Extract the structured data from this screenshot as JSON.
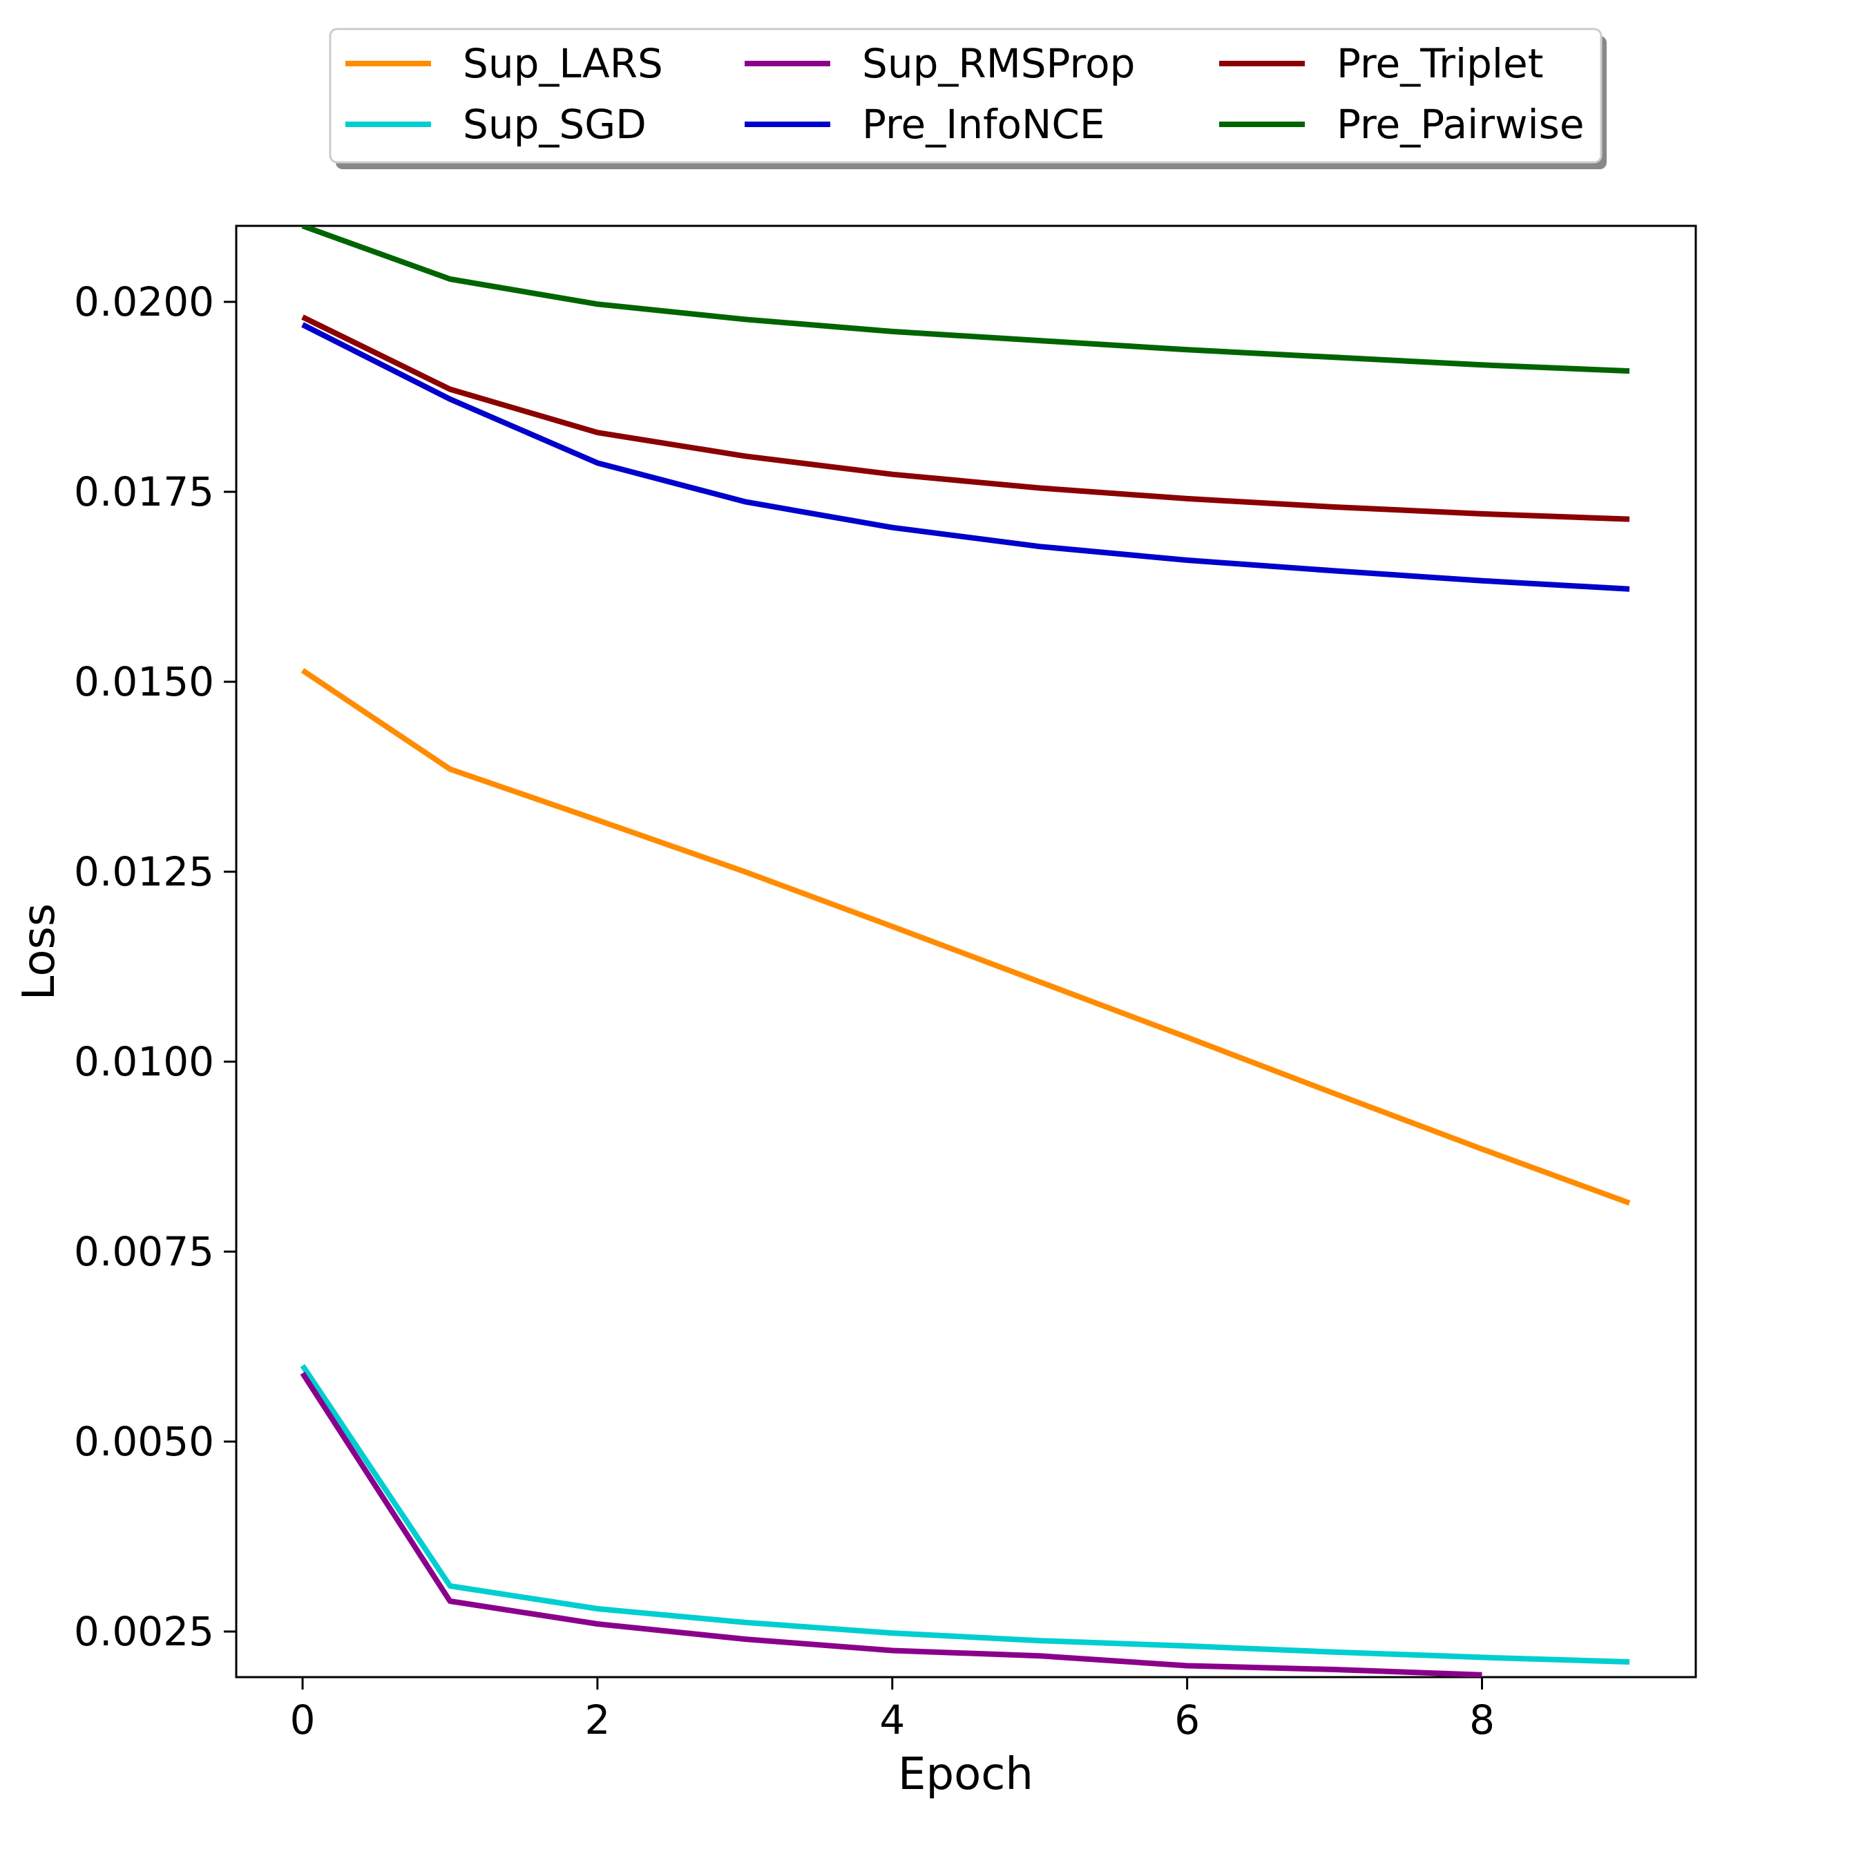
{
  "chart_data": {
    "type": "line",
    "title": "",
    "xlabel": "Epoch",
    "ylabel": "Loss",
    "xlim": [
      -0.45,
      9.45
    ],
    "ylim": [
      0.0019,
      0.021
    ],
    "x_ticks": [
      0,
      2,
      4,
      6,
      8
    ],
    "x_tick_labels": [
      "0",
      "2",
      "4",
      "6",
      "8"
    ],
    "y_ticks": [
      0.0025,
      0.005,
      0.0075,
      0.01,
      0.0125,
      0.015,
      0.0175,
      0.02
    ],
    "y_tick_labels": [
      "0.0025",
      "0.0050",
      "0.0075",
      "0.0100",
      "0.0125",
      "0.0150",
      "0.0175",
      "0.0200"
    ],
    "grid": false,
    "legend_position": "top-center, outside plot, 3 columns",
    "series": [
      {
        "name": "Sup_LARS",
        "color": "#ff8c00",
        "x": [
          0,
          1,
          2,
          3,
          4,
          5,
          6,
          7,
          8,
          9
        ],
        "values": [
          0.01515,
          0.01385,
          0.01318,
          0.0125,
          0.01178,
          0.01105,
          0.01032,
          0.00958,
          0.00885,
          0.00814
        ]
      },
      {
        "name": "Sup_SGD",
        "color": "#00ced1",
        "x": [
          0,
          1,
          2,
          3,
          4,
          5,
          6,
          7,
          8,
          9
        ],
        "values": [
          0.006,
          0.0031,
          0.0028,
          0.00262,
          0.00248,
          0.00238,
          0.00231,
          0.00223,
          0.00216,
          0.0021
        ]
      },
      {
        "name": "Sup_RMSProp",
        "color": "#8b008b",
        "x": [
          0,
          1,
          2,
          3,
          4,
          5,
          6,
          7,
          8
        ],
        "values": [
          0.0059,
          0.0029,
          0.0026,
          0.0024,
          0.00225,
          0.00218,
          0.00205,
          0.002,
          0.00193
        ]
      },
      {
        "name": "Pre_InfoNCE",
        "color": "#0000cd",
        "x": [
          0,
          1,
          2,
          3,
          4,
          5,
          6,
          7,
          8,
          9
        ],
        "values": [
          0.0197,
          0.01872,
          0.01788,
          0.01737,
          0.01703,
          0.01678,
          0.0166,
          0.01646,
          0.01633,
          0.01622
        ]
      },
      {
        "name": "Pre_Triplet",
        "color": "#8b0000",
        "x": [
          0,
          1,
          2,
          3,
          4,
          5,
          6,
          7,
          8,
          9
        ],
        "values": [
          0.0198,
          0.01885,
          0.01828,
          0.01797,
          0.01773,
          0.01755,
          0.01741,
          0.0173,
          0.01721,
          0.01714
        ]
      },
      {
        "name": "Pre_Pairwise",
        "color": "#006400",
        "x": [
          0,
          1,
          2,
          3,
          4,
          5,
          6,
          7,
          8,
          9
        ],
        "values": [
          0.021,
          0.0203,
          0.01997,
          0.01977,
          0.01961,
          0.01949,
          0.01937,
          0.01927,
          0.01917,
          0.01909
        ]
      }
    ]
  }
}
